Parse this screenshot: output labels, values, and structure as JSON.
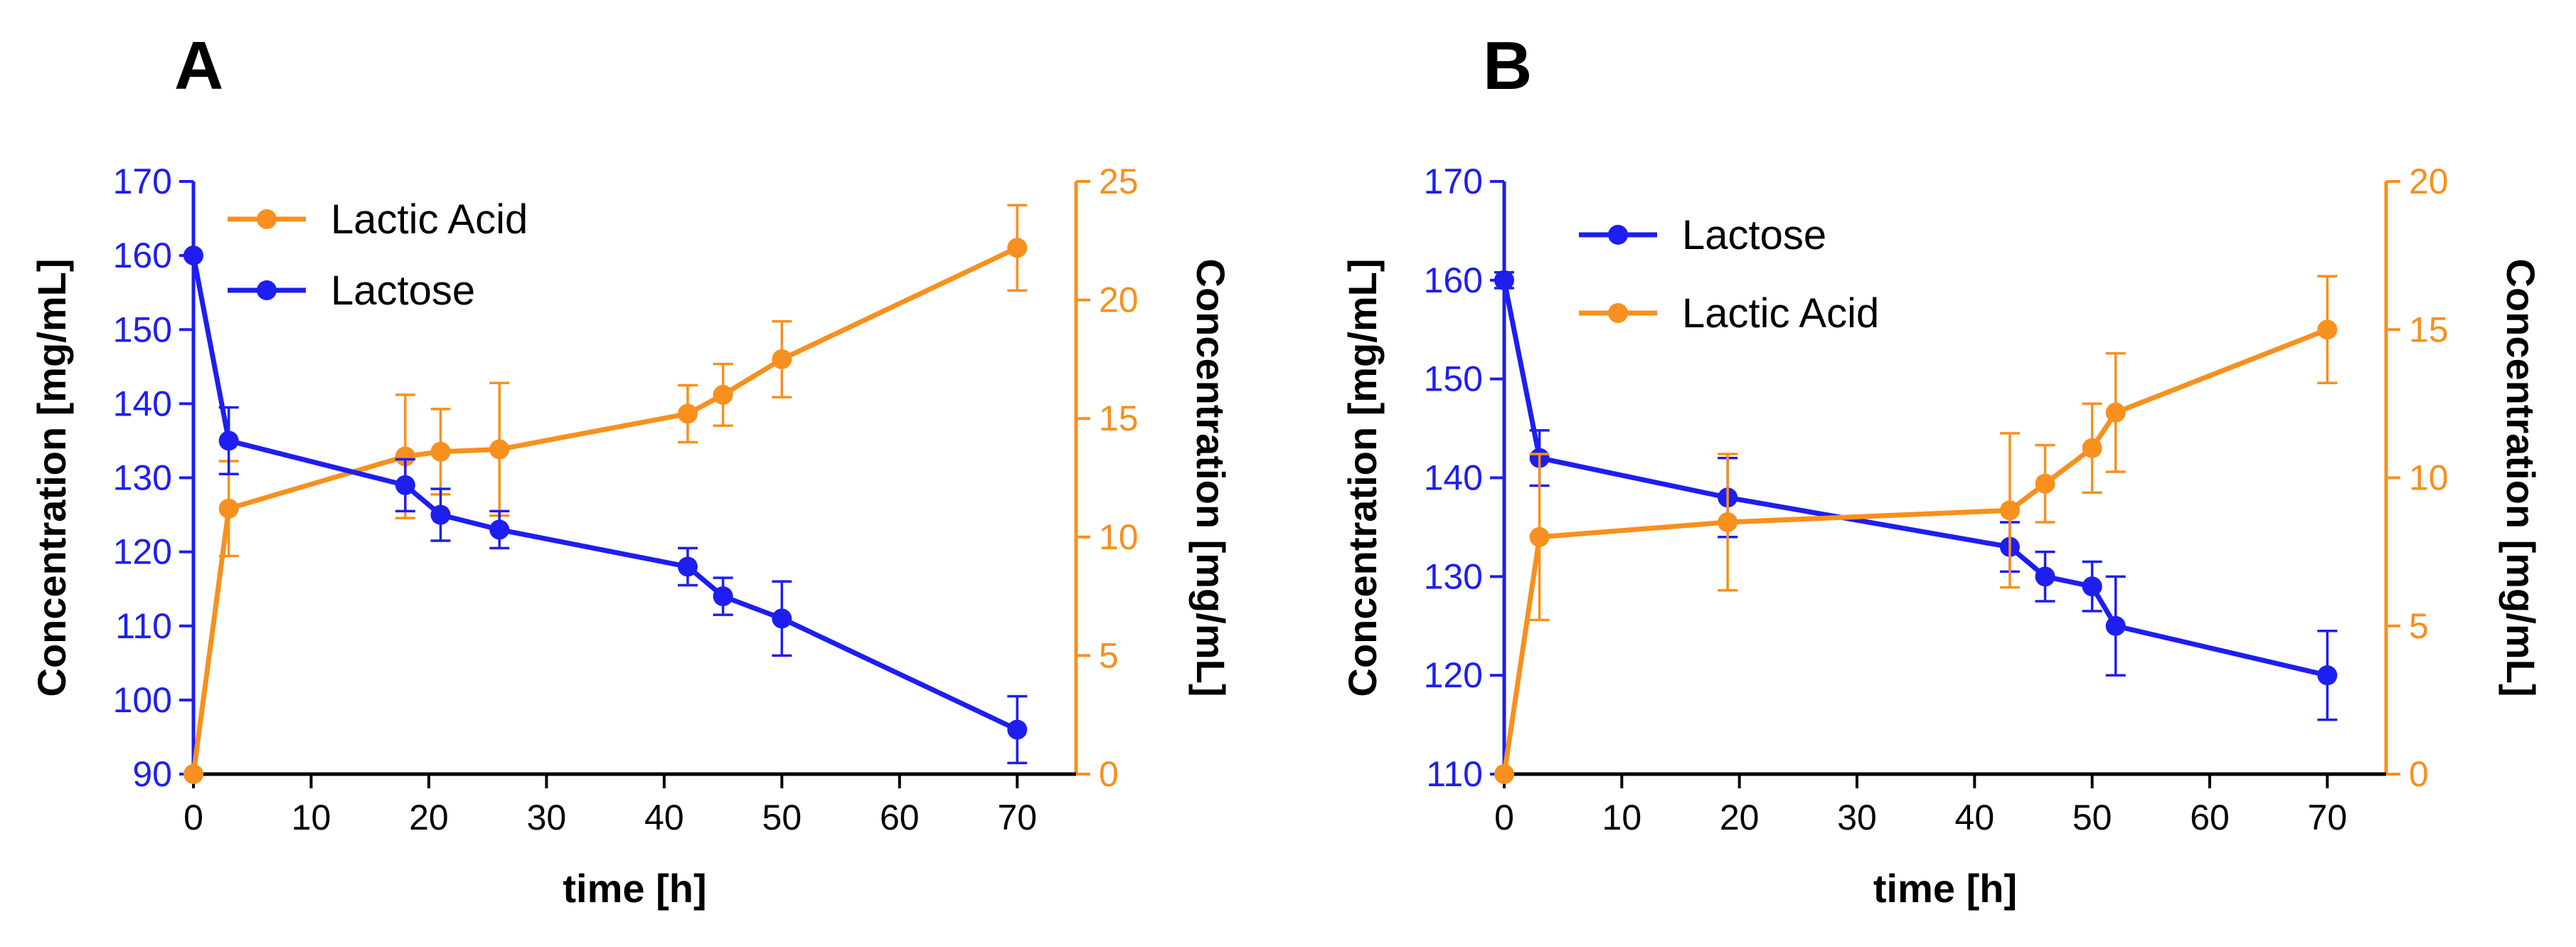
{
  "colors": {
    "lactose": "#1e1ef0",
    "lactic_acid": "#f7901e",
    "axis": "#000000"
  },
  "chart_data": [
    {
      "type": "line",
      "panel_label": "A",
      "xlabel": "time [h]",
      "xlim": [
        0,
        75
      ],
      "x_ticks": [
        0,
        10,
        20,
        30,
        40,
        50,
        60,
        70
      ],
      "ylabel_left": "Concentration [mg/mL]",
      "ylim_left": [
        90,
        170
      ],
      "y_ticks_left": [
        90,
        100,
        110,
        120,
        130,
        140,
        150,
        160,
        170
      ],
      "ylabel_right": "Concentration [mg/mL]",
      "ylim_right": [
        0,
        25
      ],
      "y_ticks_right": [
        0,
        5,
        10,
        15,
        20,
        25
      ],
      "legend_order": [
        "Lactic Acid",
        "Lactose"
      ],
      "series": [
        {
          "name": "Lactic Acid",
          "axis": "right",
          "color": "#f7901e",
          "points": [
            {
              "x": 0,
              "y": 0,
              "err": 0
            },
            {
              "x": 3,
              "y": 11.2,
              "err": 2.0
            },
            {
              "x": 18,
              "y": 13.4,
              "err": 2.6
            },
            {
              "x": 21,
              "y": 13.6,
              "err": 1.8
            },
            {
              "x": 26,
              "y": 13.7,
              "err": 2.8
            },
            {
              "x": 42,
              "y": 15.2,
              "err": 1.2
            },
            {
              "x": 45,
              "y": 16.0,
              "err": 1.3
            },
            {
              "x": 50,
              "y": 17.5,
              "err": 1.6
            },
            {
              "x": 70,
              "y": 22.2,
              "err": 1.8
            }
          ]
        },
        {
          "name": "Lactose",
          "axis": "left",
          "color": "#1e1ef0",
          "points": [
            {
              "x": 0,
              "y": 160,
              "err": 0
            },
            {
              "x": 3,
              "y": 135,
              "err": 4.5
            },
            {
              "x": 18,
              "y": 129,
              "err": 3.5
            },
            {
              "x": 21,
              "y": 125,
              "err": 3.5
            },
            {
              "x": 26,
              "y": 123,
              "err": 2.5
            },
            {
              "x": 42,
              "y": 118,
              "err": 2.5
            },
            {
              "x": 45,
              "y": 114,
              "err": 2.5
            },
            {
              "x": 50,
              "y": 111,
              "err": 5.0
            },
            {
              "x": 70,
              "y": 96,
              "err": 4.5
            }
          ]
        }
      ]
    },
    {
      "type": "line",
      "panel_label": "B",
      "xlabel": "time [h]",
      "xlim": [
        0,
        75
      ],
      "x_ticks": [
        0,
        10,
        20,
        30,
        40,
        50,
        60,
        70
      ],
      "ylabel_left": "Concentration [mg/mL]",
      "ylim_left": [
        110,
        170
      ],
      "y_ticks_left": [
        110,
        120,
        130,
        140,
        150,
        160,
        170
      ],
      "ylabel_right": "Concentration [mg/mL]",
      "ylim_right": [
        0,
        20
      ],
      "y_ticks_right": [
        0,
        5,
        10,
        15,
        20
      ],
      "legend_order": [
        "Lactose",
        "Lactic Acid"
      ],
      "series": [
        {
          "name": "Lactose",
          "axis": "left",
          "color": "#1e1ef0",
          "points": [
            {
              "x": 0,
              "y": 160,
              "err": 0.8
            },
            {
              "x": 3,
              "y": 142,
              "err": 2.8
            },
            {
              "x": 19,
              "y": 138,
              "err": 4.0
            },
            {
              "x": 43,
              "y": 133,
              "err": 2.5
            },
            {
              "x": 46,
              "y": 130,
              "err": 2.5
            },
            {
              "x": 50,
              "y": 129,
              "err": 2.5
            },
            {
              "x": 52,
              "y": 125,
              "err": 5.0
            },
            {
              "x": 70,
              "y": 120,
              "err": 4.5
            }
          ]
        },
        {
          "name": "Lactic Acid",
          "axis": "right",
          "color": "#f7901e",
          "points": [
            {
              "x": 0,
              "y": 0,
              "err": 0
            },
            {
              "x": 3,
              "y": 8.0,
              "err": 2.8
            },
            {
              "x": 19,
              "y": 8.5,
              "err": 2.3
            },
            {
              "x": 43,
              "y": 8.9,
              "err": 2.6
            },
            {
              "x": 46,
              "y": 9.8,
              "err": 1.3
            },
            {
              "x": 50,
              "y": 11.0,
              "err": 1.5
            },
            {
              "x": 52,
              "y": 12.2,
              "err": 2.0
            },
            {
              "x": 70,
              "y": 15.0,
              "err": 1.8
            }
          ]
        }
      ]
    }
  ]
}
